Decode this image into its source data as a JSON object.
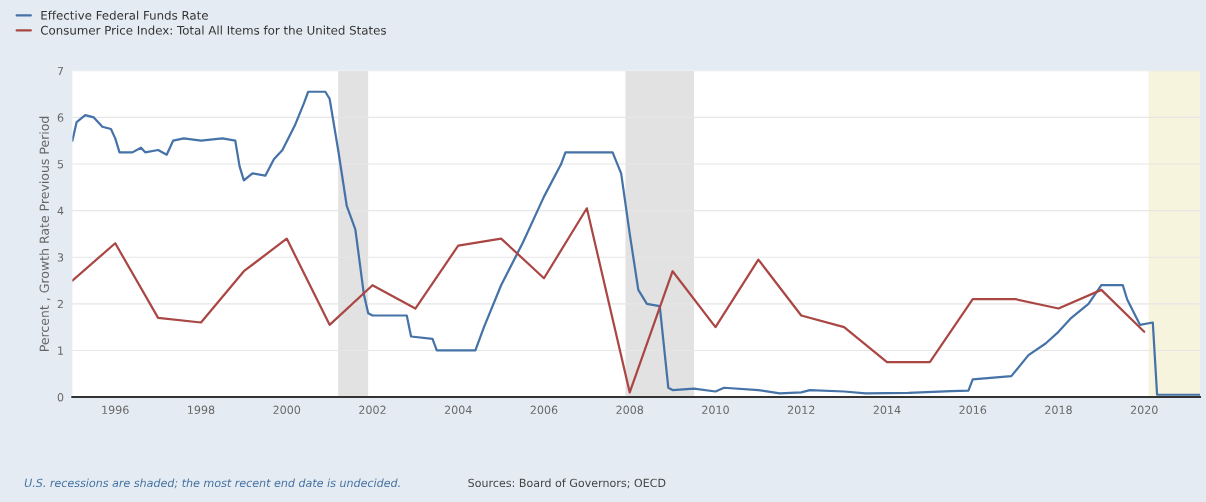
{
  "chart_data": {
    "type": "line",
    "ylabel": "Percent , Growth Rate Previous Period",
    "xlim": [
      1995.0,
      2021.3
    ],
    "xticks": [
      1996,
      1998,
      2000,
      2002,
      2004,
      2006,
      2008,
      2010,
      2012,
      2014,
      2016,
      2018,
      2020
    ],
    "ylim": [
      0,
      7
    ],
    "yticks": [
      0,
      1,
      2,
      3,
      4,
      5,
      6,
      7
    ],
    "grid": "y",
    "legend": "top left",
    "line_style": "solid",
    "series": [
      {
        "name": "Effective Federal Funds Rate",
        "color": "#4572a7",
        "x": [
          1995.0,
          1995.1,
          1995.3,
          1995.5,
          1995.7,
          1995.9,
          1996.0,
          1996.1,
          1996.4,
          1996.6,
          1996.7,
          1997.0,
          1997.2,
          1997.35,
          1997.6,
          1998.0,
          1998.5,
          1998.8,
          1998.9,
          1999.0,
          1999.2,
          1999.5,
          1999.7,
          1999.9,
          2000.2,
          2000.4,
          2000.5,
          2000.9,
          2001.0,
          2001.2,
          2001.4,
          2001.6,
          2001.8,
          2001.9,
          2002.0,
          2002.8,
          2002.9,
          2003.4,
          2003.5,
          2004.0,
          2004.4,
          2004.6,
          2005.0,
          2005.5,
          2006.0,
          2006.4,
          2006.5,
          2007.6,
          2007.8,
          2008.0,
          2008.2,
          2008.4,
          2008.7,
          2008.9,
          2009.0,
          2009.5,
          2010.0,
          2010.2,
          2011.0,
          2011.5,
          2012.0,
          2012.2,
          2013.0,
          2013.5,
          2014.5,
          2015.5,
          2015.9,
          2016.0,
          2016.9,
          2017.3,
          2017.7,
          2018.0,
          2018.3,
          2018.7,
          2019.0,
          2019.5,
          2019.6,
          2019.9,
          2020.2,
          2020.3,
          2021.3
        ],
        "values": [
          5.5,
          5.9,
          6.05,
          6.0,
          5.8,
          5.75,
          5.55,
          5.25,
          5.25,
          5.35,
          5.25,
          5.3,
          5.2,
          5.5,
          5.55,
          5.5,
          5.55,
          5.5,
          4.95,
          4.65,
          4.8,
          4.75,
          5.1,
          5.3,
          5.85,
          6.3,
          6.55,
          6.55,
          6.4,
          5.3,
          4.1,
          3.6,
          2.2,
          1.8,
          1.75,
          1.75,
          1.3,
          1.25,
          1.0,
          1.0,
          1.0,
          1.5,
          2.4,
          3.3,
          4.3,
          5.0,
          5.25,
          5.25,
          4.8,
          3.5,
          2.3,
          2.0,
          1.95,
          0.2,
          0.15,
          0.18,
          0.12,
          0.2,
          0.15,
          0.08,
          0.1,
          0.15,
          0.12,
          0.08,
          0.09,
          0.13,
          0.14,
          0.38,
          0.45,
          0.9,
          1.15,
          1.4,
          1.7,
          2.0,
          2.4,
          2.4,
          2.1,
          1.55,
          1.6,
          0.05,
          0.05
        ]
      },
      {
        "name": "Consumer Price Index: Total All Items for the United States",
        "color": "#aa4643",
        "x": [
          1995,
          1996,
          1997,
          1998,
          1999,
          2000,
          2001,
          2002,
          2003,
          2004,
          2005,
          2006,
          2007,
          2008,
          2009,
          2010,
          2011,
          2012,
          2013,
          2014,
          2015,
          2016,
          2017,
          2018,
          2019,
          2020
        ],
        "values": [
          2.5,
          3.3,
          1.7,
          1.6,
          2.7,
          3.4,
          1.55,
          2.4,
          1.9,
          3.25,
          3.4,
          2.55,
          4.05,
          0.1,
          2.7,
          1.5,
          2.95,
          1.75,
          1.5,
          0.75,
          0.75,
          2.1,
          2.1,
          1.9,
          2.3,
          1.4
        ]
      }
    ],
    "bands": [
      {
        "axis": "x",
        "from": 2001.2,
        "to": 2001.9,
        "color": "#e2e2e2"
      },
      {
        "axis": "x",
        "from": 2007.9,
        "to": 2009.5,
        "color": "#e2e2e2"
      },
      {
        "axis": "x",
        "from": 2020.1,
        "to": 2021.3,
        "color": "#f6f4dc"
      }
    ],
    "annotations": [
      "U.S. recessions are shaded; the most recent end date is undecided.",
      "Sources: Board of Governors; OECD"
    ]
  }
}
